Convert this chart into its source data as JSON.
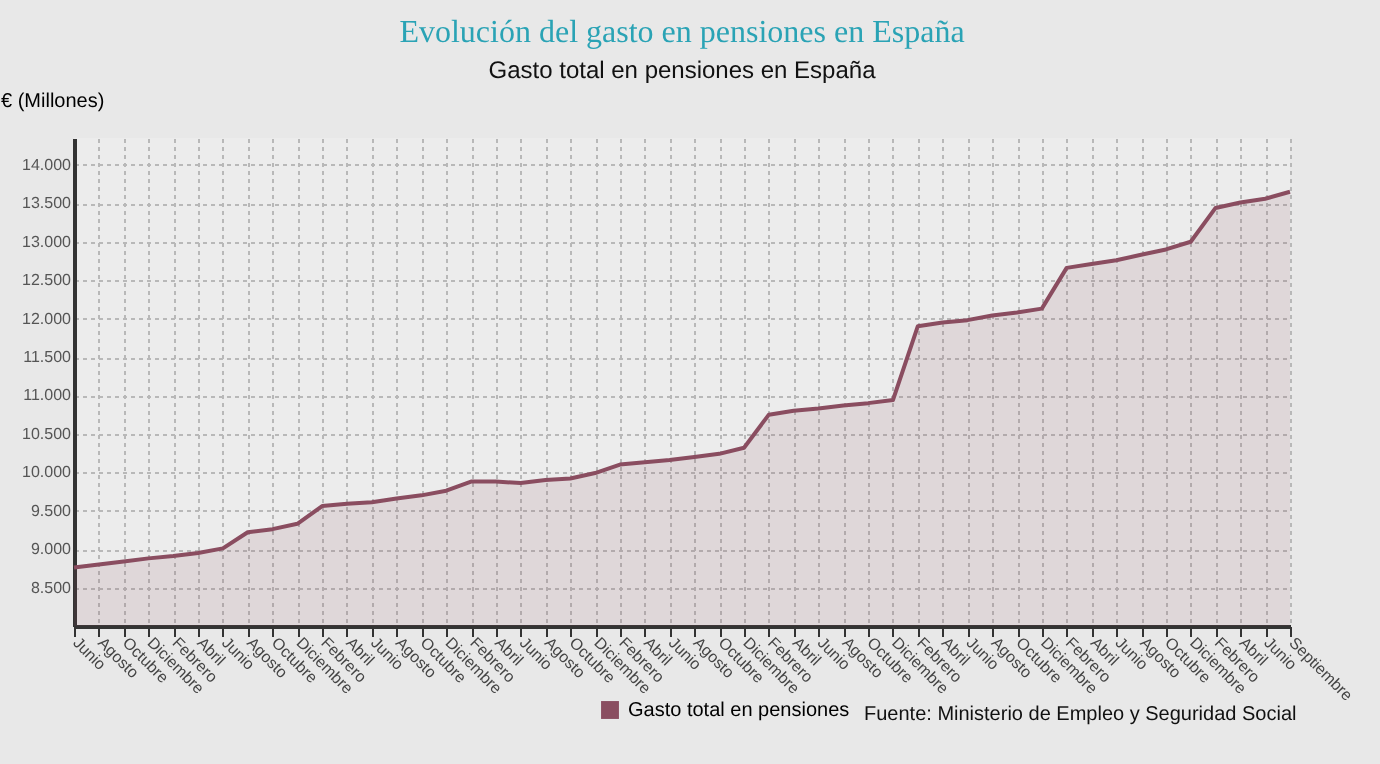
{
  "chart_data": {
    "type": "area",
    "title": "Evolución del gasto en pensiones en España",
    "subtitle": "Gasto total en pensiones en España",
    "ylabel": "€ (Millones)",
    "categories": [
      "Junio",
      "Agosto",
      "Octubre",
      "Diciembre",
      "Febrero",
      "Abril",
      "Junio",
      "Agosto",
      "Octubre",
      "Diciembre",
      "Febrero",
      "Abril",
      "Junio",
      "Agosto",
      "Octubre",
      "Diciembre",
      "Febrero",
      "Abril",
      "Junio",
      "Agosto",
      "Octubre",
      "Diciembre",
      "Febrero",
      "Abril",
      "Junio",
      "Agosto",
      "Octubre",
      "Diciembre",
      "Febrero",
      "Abril",
      "Junio",
      "Agosto",
      "Octubre",
      "Diciembre",
      "Febrero",
      "Abril",
      "Junio",
      "Agosto",
      "Octubre",
      "Diciembre",
      "Febrero",
      "Abril",
      "Junio",
      "Agosto",
      "Octubre",
      "Diciembre",
      "Febrero",
      "Abril",
      "Junio",
      "Septiembre"
    ],
    "series": [
      {
        "name": "Gasto total en pensiones",
        "color": "#8a4d60",
        "values": [
          8760,
          8800,
          8840,
          8880,
          8910,
          8950,
          9010,
          9220,
          9260,
          9330,
          9560,
          9590,
          9610,
          9660,
          9700,
          9760,
          9880,
          9880,
          9860,
          9900,
          9920,
          9990,
          10100,
          10130,
          10160,
          10200,
          10240,
          10320,
          10750,
          10800,
          10830,
          10870,
          10900,
          10940,
          11900,
          11950,
          11980,
          12040,
          12080,
          12130,
          12660,
          12710,
          12760,
          12830,
          12900,
          13000,
          13440,
          13510,
          13560,
          13650
        ]
      }
    ],
    "ylim": [
      8000,
      14350
    ],
    "yticks": [
      {
        "value": 8500,
        "label": "8.500"
      },
      {
        "value": 9000,
        "label": "9.000"
      },
      {
        "value": 9500,
        "label": "9.500"
      },
      {
        "value": 10000,
        "label": "10.000"
      },
      {
        "value": 10500,
        "label": "10.500"
      },
      {
        "value": 11000,
        "label": "11.000"
      },
      {
        "value": 11500,
        "label": "11.500"
      },
      {
        "value": 12000,
        "label": "12.000"
      },
      {
        "value": 12500,
        "label": "12.500"
      },
      {
        "value": 13000,
        "label": "13.000"
      },
      {
        "value": 13500,
        "label": "13.500"
      },
      {
        "value": 14000,
        "label": "14.000"
      }
    ],
    "grid": true,
    "legend": "bottom",
    "annotations": [
      "Fuente: Ministerio de Empleo y Seguridad Social"
    ]
  }
}
